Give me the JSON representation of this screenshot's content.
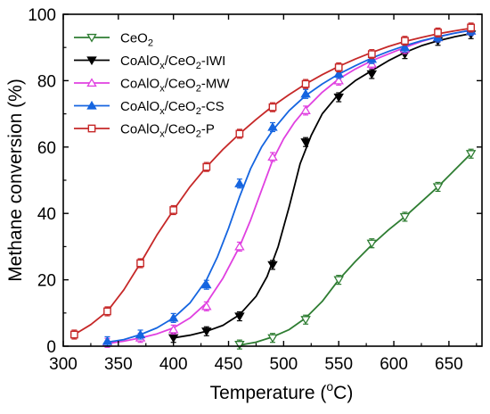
{
  "chart_data": {
    "type": "line",
    "xlabel": "Temperature (oC)",
    "xlabel_parts": [
      "Temperature (",
      "o",
      "C)"
    ],
    "ylabel": "Methane conversion (%)",
    "xlim": [
      300,
      680
    ],
    "ylim": [
      0,
      100
    ],
    "x_ticks": [
      "300",
      "350",
      "400",
      "450",
      "500",
      "550",
      "600",
      "650"
    ],
    "y_ticks": [
      "0",
      "20",
      "40",
      "60",
      "80",
      "100"
    ],
    "x_tick_values": [
      300,
      350,
      400,
      450,
      500,
      550,
      600,
      650
    ],
    "y_tick_values": [
      0,
      20,
      40,
      60,
      80,
      100
    ],
    "grid": false,
    "legend_position": "top-left",
    "series": [
      {
        "name": "CeO2",
        "label_parts": [
          "CeO",
          "2",
          ""
        ],
        "color": "#2e7d32",
        "marker": "triangle-down-open",
        "x": [
          460,
          490,
          520,
          550,
          580,
          610,
          640,
          670
        ],
        "y": [
          0.5,
          2.5,
          8,
          20,
          31,
          39,
          48,
          58
        ],
        "curve": [
          [
            460,
            0.3
          ],
          [
            475,
            1.2
          ],
          [
            490,
            2.8
          ],
          [
            505,
            5
          ],
          [
            520,
            8.5
          ],
          [
            535,
            13.5
          ],
          [
            550,
            20
          ],
          [
            565,
            25.5
          ],
          [
            580,
            30.5
          ],
          [
            595,
            35
          ],
          [
            610,
            39
          ],
          [
            625,
            43.5
          ],
          [
            640,
            48
          ],
          [
            655,
            53
          ],
          [
            670,
            58
          ]
        ]
      },
      {
        "name": "CoAlOx/CeO2-IWI",
        "label_parts": [
          "CoAlO",
          "x",
          "/CeO",
          "2",
          "-IWI"
        ],
        "color": "#000000",
        "marker": "triangle-down-filled",
        "x": [
          400,
          430,
          460,
          490,
          520,
          550,
          580,
          610,
          640,
          670
        ],
        "y": [
          2.5,
          4.5,
          9,
          24.5,
          61.5,
          75,
          82,
          88,
          92,
          94
        ],
        "curve": [
          [
            400,
            2.5
          ],
          [
            415,
            3.3
          ],
          [
            430,
            4.5
          ],
          [
            445,
            6.3
          ],
          [
            460,
            9.5
          ],
          [
            475,
            15
          ],
          [
            485,
            21
          ],
          [
            495,
            30
          ],
          [
            505,
            42
          ],
          [
            515,
            55
          ],
          [
            525,
            63.5
          ],
          [
            535,
            70
          ],
          [
            550,
            76
          ],
          [
            565,
            80
          ],
          [
            580,
            83
          ],
          [
            595,
            86
          ],
          [
            610,
            88.5
          ],
          [
            625,
            90.5
          ],
          [
            640,
            92
          ],
          [
            655,
            93.2
          ],
          [
            670,
            94.2
          ]
        ]
      },
      {
        "name": "CoAlOx/CeO2-MW",
        "label_parts": [
          "CoAlO",
          "x",
          "/CeO",
          "2",
          "-MW"
        ],
        "color": "#e040e0",
        "marker": "triangle-up-open",
        "x": [
          340,
          370,
          400,
          430,
          460,
          490,
          520,
          550,
          580,
          610,
          640,
          670
        ],
        "y": [
          1,
          2.5,
          5,
          12,
          30,
          57,
          71,
          80,
          85,
          89.5,
          93,
          95
        ],
        "curve": [
          [
            340,
            0.8
          ],
          [
            355,
            1.5
          ],
          [
            370,
            2.5
          ],
          [
            385,
            3.7
          ],
          [
            400,
            5.5
          ],
          [
            415,
            8.5
          ],
          [
            430,
            13
          ],
          [
            445,
            20.5
          ],
          [
            460,
            30
          ],
          [
            470,
            38
          ],
          [
            480,
            47
          ],
          [
            490,
            56
          ],
          [
            500,
            62.5
          ],
          [
            510,
            67.5
          ],
          [
            520,
            71.5
          ],
          [
            535,
            76.5
          ],
          [
            550,
            80.5
          ],
          [
            565,
            83.5
          ],
          [
            580,
            86
          ],
          [
            595,
            88
          ],
          [
            610,
            90
          ],
          [
            625,
            91.8
          ],
          [
            640,
            93.2
          ],
          [
            655,
            94.3
          ],
          [
            670,
            95.2
          ]
        ]
      },
      {
        "name": "CoAlOx/CeO2-CS",
        "label_parts": [
          "CoAlO",
          "x",
          "/CeO",
          "2",
          "-CS"
        ],
        "color": "#1565e0",
        "marker": "triangle-up-filled",
        "x": [
          340,
          370,
          400,
          430,
          460,
          490,
          520,
          550,
          580,
          610,
          640,
          670
        ],
        "y": [
          1.5,
          3.5,
          8.5,
          18.5,
          49,
          66,
          76,
          82,
          86.5,
          90,
          93,
          95
        ],
        "curve": [
          [
            340,
            1.2
          ],
          [
            355,
            2
          ],
          [
            370,
            3.5
          ],
          [
            385,
            5.5
          ],
          [
            400,
            8.5
          ],
          [
            415,
            13
          ],
          [
            430,
            20
          ],
          [
            440,
            27
          ],
          [
            450,
            35.5
          ],
          [
            460,
            45
          ],
          [
            470,
            53.5
          ],
          [
            480,
            60
          ],
          [
            490,
            65
          ],
          [
            505,
            71
          ],
          [
            520,
            75.5
          ],
          [
            535,
            79
          ],
          [
            550,
            82
          ],
          [
            565,
            84.5
          ],
          [
            580,
            86.8
          ],
          [
            595,
            88.8
          ],
          [
            610,
            90.5
          ],
          [
            625,
            92
          ],
          [
            640,
            93.2
          ],
          [
            655,
            94.3
          ],
          [
            670,
            95.2
          ]
        ]
      },
      {
        "name": "CoAlOx/CeO2-P",
        "label_parts": [
          "CoAlO",
          "x",
          "/CeO",
          "2",
          "-P"
        ],
        "color": "#c62828",
        "marker": "square-open",
        "x": [
          310,
          340,
          370,
          400,
          430,
          460,
          490,
          520,
          550,
          580,
          610,
          640,
          670
        ],
        "y": [
          3.5,
          10.5,
          25,
          41,
          54,
          64,
          72,
          79,
          84,
          88,
          92,
          94.5,
          96
        ],
        "curve": [
          [
            310,
            3.5
          ],
          [
            325,
            6.5
          ],
          [
            340,
            10.5
          ],
          [
            355,
            17
          ],
          [
            370,
            25
          ],
          [
            385,
            33.5
          ],
          [
            400,
            41
          ],
          [
            415,
            48
          ],
          [
            430,
            54
          ],
          [
            445,
            59.3
          ],
          [
            460,
            64
          ],
          [
            475,
            68.3
          ],
          [
            490,
            72.3
          ],
          [
            505,
            75.8
          ],
          [
            520,
            79
          ],
          [
            535,
            81.8
          ],
          [
            550,
            84.3
          ],
          [
            565,
            86.5
          ],
          [
            580,
            88.5
          ],
          [
            595,
            90.3
          ],
          [
            610,
            91.8
          ],
          [
            625,
            93
          ],
          [
            640,
            94.1
          ],
          [
            655,
            95
          ],
          [
            670,
            95.8
          ]
        ]
      }
    ]
  }
}
